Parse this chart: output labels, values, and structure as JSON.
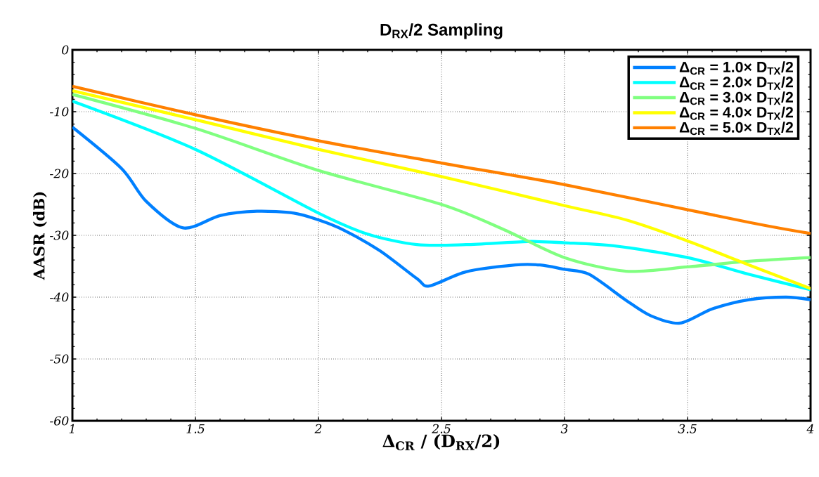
{
  "chart_data": {
    "type": "line",
    "title": "D$_{RX}$/2 Sampling",
    "xlabel": "Δ$_{CR}$ / (D$_{RX}$/2)",
    "ylabel": "AASR (dB)",
    "xlim": [
      1,
      4
    ],
    "ylim": [
      -60,
      0
    ],
    "xticks": [
      1,
      1.5,
      2,
      2.5,
      3,
      3.5,
      4
    ],
    "yticks": [
      -60,
      -50,
      -40,
      -30,
      -20,
      -10,
      0
    ],
    "grid": true,
    "legend": "top right",
    "line_style": "solid",
    "series": [
      {
        "name": "Δ$_{CR}$ = 1.0× D$_{TX}$/2",
        "color": "#0080ff",
        "x": [
          1,
          1.2,
          1.3,
          1.45,
          1.6,
          1.75,
          1.9,
          2,
          2.1,
          2.25,
          2.4,
          2.45,
          2.6,
          2.8,
          2.9,
          3,
          3.1,
          3.25,
          3.35,
          3.47,
          3.6,
          3.75,
          3.9,
          4
        ],
        "values": [
          -12.5,
          -19.2,
          -24.5,
          -28.8,
          -26.8,
          -26.1,
          -26.4,
          -27.5,
          -29.1,
          -32.5,
          -37,
          -38.2,
          -35.9,
          -34.8,
          -34.8,
          -35.5,
          -36.3,
          -40.5,
          -43,
          -44.2,
          -41.9,
          -40.4,
          -40,
          -40.4
        ]
      },
      {
        "name": "Δ$_{CR}$ = 2.0× D$_{TX}$/2",
        "color": "#00ffff",
        "x": [
          1,
          1.5,
          2,
          2.2,
          2.4,
          2.6,
          2.85,
          3,
          3.2,
          3.5,
          3.75,
          4
        ],
        "values": [
          -8.3,
          -16.1,
          -26.4,
          -29.8,
          -31.5,
          -31.5,
          -31,
          -31.2,
          -31.7,
          -33.6,
          -36.3,
          -38.8
        ]
      },
      {
        "name": "Δ$_{CR}$ = 3.0× D$_{TX}$/2",
        "color": "#80ff80",
        "x": [
          1,
          1.5,
          2,
          2.5,
          2.75,
          3,
          3.25,
          3.5,
          3.75,
          4
        ],
        "values": [
          -7.2,
          -12.7,
          -19.5,
          -25,
          -29,
          -33.6,
          -35.8,
          -35.1,
          -34.2,
          -33.6
        ]
      },
      {
        "name": "Δ$_{CR}$ = 4.0× D$_{TX}$/2",
        "color": "#ffff00",
        "x": [
          1,
          1.5,
          2,
          2.5,
          3,
          3.25,
          3.5,
          3.75,
          4
        ],
        "values": [
          -6.6,
          -11.3,
          -16.1,
          -20.5,
          -25.2,
          -27.5,
          -30.9,
          -34.8,
          -38.6
        ]
      },
      {
        "name": "Δ$_{CR}$ = 5.0× D$_{TX}$/2",
        "color": "#ff8000",
        "x": [
          1,
          1.5,
          2,
          2.5,
          3,
          3.75,
          4
        ],
        "values": [
          -5.9,
          -10.5,
          -14.7,
          -18.3,
          -21.8,
          -27.9,
          -29.7
        ]
      }
    ]
  }
}
